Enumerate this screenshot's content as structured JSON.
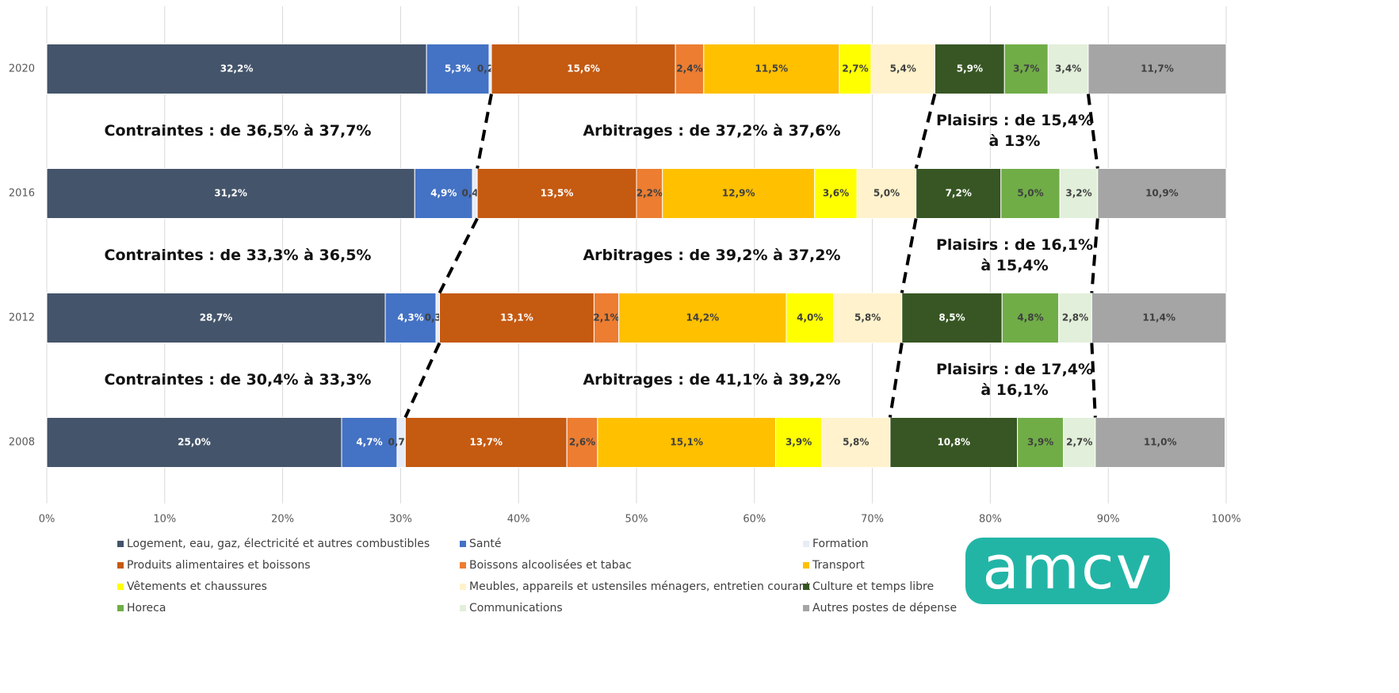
{
  "chart_data": {
    "type": "stacked_barh",
    "categories": [
      "2020",
      "2016",
      "2012",
      "2008"
    ],
    "series": [
      {
        "name": "Logement, eau, gaz, électricité et autres combustibles",
        "color": "#44546a",
        "values": [
          32.2,
          31.2,
          28.7,
          25.0
        ],
        "value_labels": [
          "32,2%",
          "31,2%",
          "28,7%",
          "25,0%"
        ]
      },
      {
        "name": "Santé",
        "color": "#4472c4",
        "values": [
          5.3,
          4.9,
          4.3,
          4.7
        ],
        "value_labels": [
          "5,3%",
          "4,9%",
          "4,3%",
          "4,7%"
        ]
      },
      {
        "name": "Formation",
        "color": "#e7ecf6",
        "values": [
          0.2,
          0.4,
          0.3,
          0.7
        ],
        "value_labels": [
          "0,2%",
          "0,4%",
          "0,3%",
          "0,7%"
        ]
      },
      {
        "name": "Produits alimentaires et boissons",
        "color": "#c55a11",
        "values": [
          15.6,
          13.5,
          13.1,
          13.7
        ],
        "value_labels": [
          "15,6%",
          "13,5%",
          "13,1%",
          "13,7%"
        ]
      },
      {
        "name": "Boissons alcoolisées et tabac",
        "color": "#ed7d31",
        "values": [
          2.4,
          2.2,
          2.1,
          2.6
        ],
        "value_labels": [
          "2,4%",
          "2,2%",
          "2,1%",
          "2,6%"
        ]
      },
      {
        "name": "Transport",
        "color": "#ffc000",
        "values": [
          11.5,
          12.9,
          14.2,
          15.1
        ],
        "value_labels": [
          "11,5%",
          "12,9%",
          "14,2%",
          "15,1%"
        ]
      },
      {
        "name": "Vêtements et chaussures",
        "color": "#ffff00",
        "values": [
          2.7,
          3.6,
          4.0,
          3.9
        ],
        "value_labels": [
          "2,7%",
          "3,6%",
          "4,0%",
          "3,9%"
        ]
      },
      {
        "name": "Meubles, appareils et ustensiles ménagers, entretien courant",
        "color": "#fff2cc",
        "values": [
          5.4,
          5.0,
          5.8,
          5.8
        ],
        "value_labels": [
          "5,4%",
          "5,0%",
          "5,8%",
          "5,8%"
        ]
      },
      {
        "name": "Culture et temps libre",
        "color": "#375623",
        "values": [
          5.9,
          7.2,
          8.5,
          10.8
        ],
        "value_labels": [
          "5,9%",
          "7,2%",
          "8,5%",
          "10,8%"
        ]
      },
      {
        "name": "Horeca",
        "color": "#70ad47",
        "values": [
          3.7,
          5.0,
          4.8,
          3.9
        ],
        "value_labels": [
          "3,7%",
          "5,0%",
          "4,8%",
          "3,9%"
        ]
      },
      {
        "name": "Communications",
        "color": "#e2efda",
        "values": [
          3.4,
          3.2,
          2.8,
          2.7
        ],
        "value_labels": [
          "3,4%",
          "3,2%",
          "2,8%",
          "2,7%"
        ]
      },
      {
        "name": "Autres postes de dépense",
        "color": "#a5a5a5",
        "values": [
          11.7,
          10.9,
          11.4,
          11.0
        ],
        "value_labels": [
          "11,7%",
          "10,9%",
          "11,4%",
          "11,0%"
        ]
      }
    ],
    "xlim": [
      0,
      100
    ],
    "xticks": [
      {
        "value": 0,
        "label": "0%"
      },
      {
        "value": 10,
        "label": "10%"
      },
      {
        "value": 20,
        "label": "20%"
      },
      {
        "value": 30,
        "label": "30%"
      },
      {
        "value": 40,
        "label": "40%"
      },
      {
        "value": 50,
        "label": "50%"
      },
      {
        "value": 60,
        "label": "60%"
      },
      {
        "value": 70,
        "label": "70%"
      },
      {
        "value": 80,
        "label": "80%"
      },
      {
        "value": 90,
        "label": "90%"
      },
      {
        "value": 100,
        "label": "100%"
      }
    ],
    "grid": true,
    "annotations": [
      [
        "Contraintes : de 36,5% à 37,7%",
        "Arbitrages : de 37,2% à 37,6%",
        "Plaisirs : de 15,4% à 13%"
      ],
      [
        "Contraintes : de 33,3% à 36,5%",
        "Arbitrages : de 39,2% à 37,2%",
        "Plaisirs : de 16,1% à 15,4%"
      ],
      [
        "Contraintes : de 30,4% à 33,3%",
        "Arbitrages : de 41,1% à 39,2%",
        "Plaisirs : de 17,4% à 16,1%"
      ]
    ],
    "logo": "amcv"
  }
}
